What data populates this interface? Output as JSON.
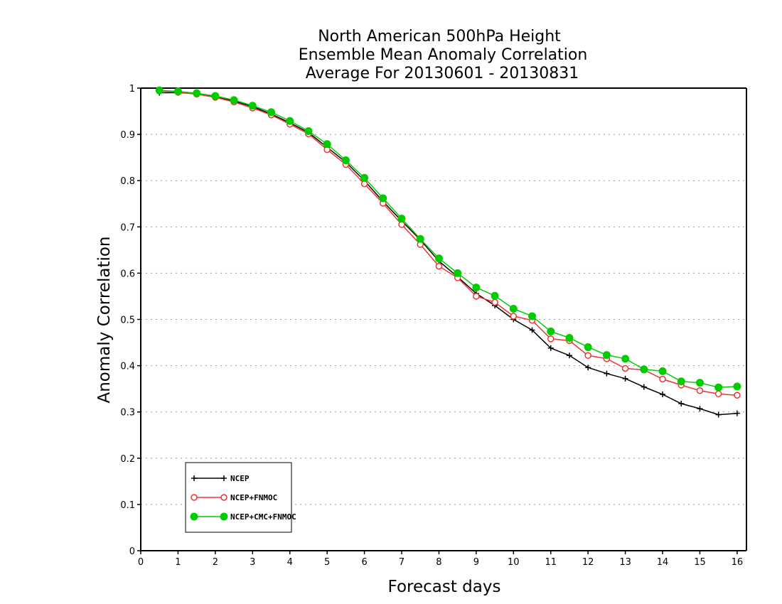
{
  "chart_data": {
    "type": "line",
    "title": [
      "North American 500hPa Height",
      "Ensemble Mean Anomaly Correlation",
      "Average For 20130601 - 20130831"
    ],
    "xlabel": "Forecast days",
    "ylabel": "Anomaly Correlation",
    "xlim": [
      0,
      16.25
    ],
    "ylim": [
      0,
      1
    ],
    "x_ticks": [
      "0",
      "1",
      "2",
      "3",
      "4",
      "5",
      "6",
      "7",
      "8",
      "9",
      "10",
      "11",
      "12",
      "13",
      "14",
      "15",
      "16"
    ],
    "y_ticks": [
      "0",
      "0.1",
      "0.2",
      "0.3",
      "0.4",
      "0.5",
      "0.6",
      "0.7",
      "0.8",
      "0.9",
      "1"
    ],
    "grid": true,
    "legend_position": "bottom-left",
    "x": [
      0.5,
      1.0,
      1.5,
      2.0,
      2.5,
      3.0,
      3.5,
      4.0,
      4.5,
      5.0,
      5.5,
      6.0,
      6.5,
      7.0,
      7.5,
      8.0,
      8.5,
      9.0,
      9.5,
      10.0,
      10.5,
      11.0,
      11.5,
      12.0,
      12.5,
      13.0,
      13.5,
      14.0,
      14.5,
      15.0,
      15.5,
      16.0
    ],
    "series": [
      {
        "name": "NCEP",
        "color": "#000000",
        "marker": "plus",
        "values": [
          0.99,
          0.99,
          0.988,
          0.982,
          0.972,
          0.96,
          0.944,
          0.925,
          0.904,
          0.872,
          0.84,
          0.8,
          0.755,
          0.713,
          0.672,
          0.626,
          0.592,
          0.556,
          0.53,
          0.5,
          0.477,
          0.438,
          0.422,
          0.396,
          0.383,
          0.372,
          0.354,
          0.338,
          0.318,
          0.307,
          0.294,
          0.297
        ]
      },
      {
        "name": "NCEP+FNMOC",
        "color": "#ee3333",
        "marker": "open-circle",
        "values": [
          0.994,
          0.991,
          0.987,
          0.98,
          0.97,
          0.957,
          0.942,
          0.922,
          0.901,
          0.867,
          0.835,
          0.793,
          0.751,
          0.705,
          0.662,
          0.615,
          0.59,
          0.55,
          0.537,
          0.507,
          0.498,
          0.458,
          0.454,
          0.422,
          0.415,
          0.394,
          0.391,
          0.371,
          0.358,
          0.346,
          0.339,
          0.336
        ]
      },
      {
        "name": "NCEP+CMC+FNMOC",
        "color": "#00cc00",
        "marker": "filled-circle",
        "values": [
          0.995,
          0.993,
          0.989,
          0.983,
          0.974,
          0.962,
          0.948,
          0.929,
          0.907,
          0.879,
          0.844,
          0.806,
          0.762,
          0.718,
          0.674,
          0.632,
          0.6,
          0.569,
          0.551,
          0.523,
          0.507,
          0.474,
          0.46,
          0.44,
          0.423,
          0.415,
          0.392,
          0.388,
          0.366,
          0.363,
          0.353,
          0.355
        ]
      }
    ]
  }
}
